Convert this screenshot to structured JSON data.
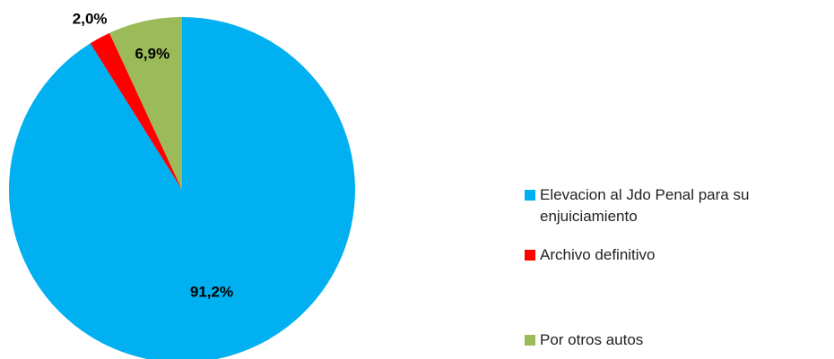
{
  "chart_data": {
    "type": "pie",
    "categories": [
      "Elevacion al Jdo Penal para su enjuiciamiento",
      "Archivo definitivo",
      "Por otros autos"
    ],
    "values": [
      91.2,
      2.0,
      6.9
    ],
    "value_labels": [
      "91,2%",
      "2,0%",
      "6,9%"
    ],
    "colors": [
      "#00b0f0",
      "#ff0000",
      "#9bbb59"
    ],
    "legend": "right"
  }
}
